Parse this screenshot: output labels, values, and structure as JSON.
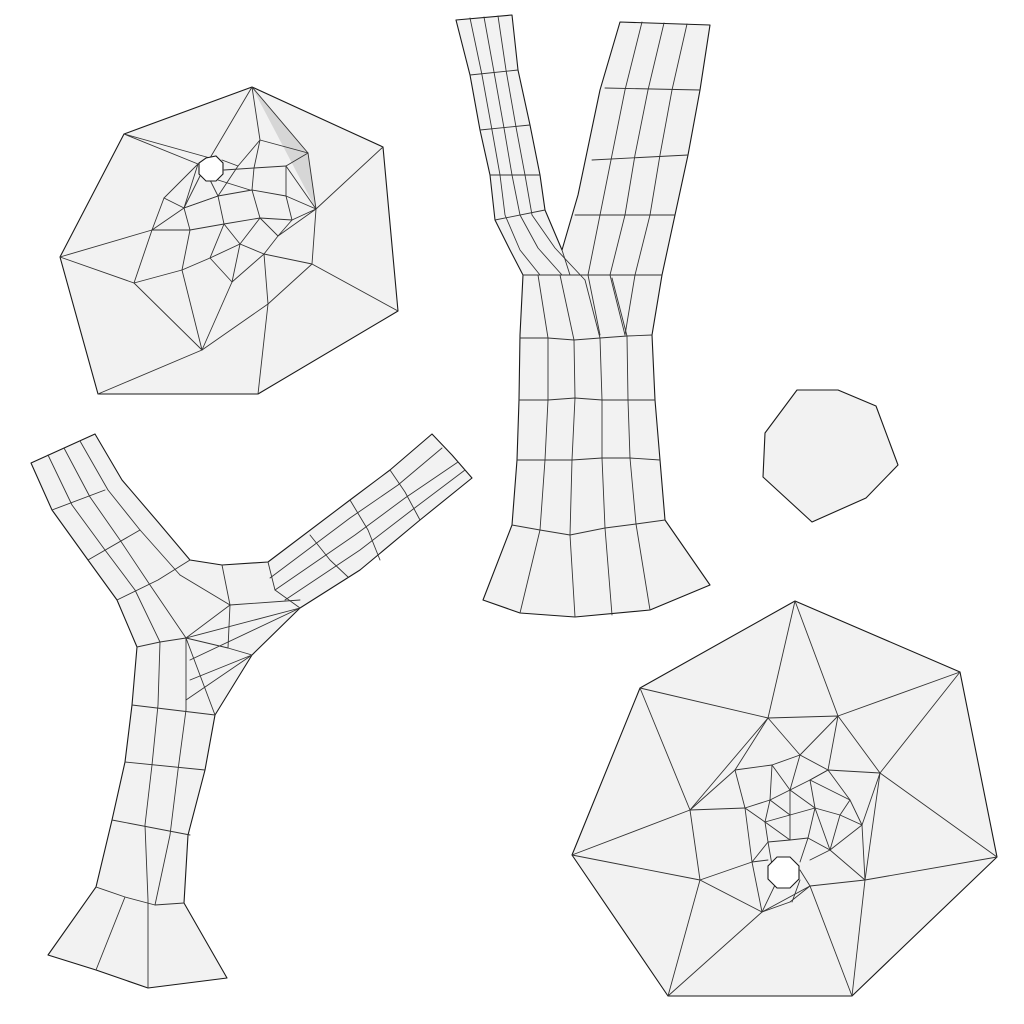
{
  "figure": {
    "background": "#ffffff",
    "face_fill": "#f2f2f2",
    "edge_color": "#1a1a1a",
    "shade_fill": "#d6d6d6",
    "shapes": [
      "heptagon-mesh-with-hole",
      "y-branch-quad-mesh",
      "plain-heptagon",
      "tripod-quad-mesh",
      "heptagon-star-mesh-with-hole"
    ]
  }
}
